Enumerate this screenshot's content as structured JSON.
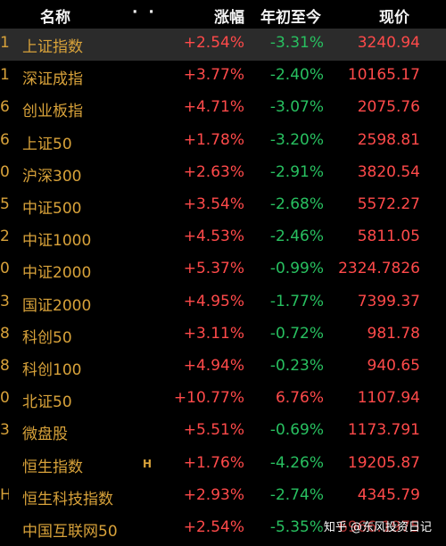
{
  "header": {
    "name_label": "名称",
    "dots": "· ·",
    "change_label": "涨幅",
    "ytd_label": "年初至今",
    "price_label": "现价"
  },
  "rows": [
    {
      "edge": "1",
      "name": "上证指数",
      "hk": "",
      "change": "+2.54%",
      "ytd": "-3.31%",
      "ytd_dir": "down",
      "price": "3240.94"
    },
    {
      "edge": "1",
      "name": "深证成指",
      "hk": "",
      "change": "+3.77%",
      "ytd": "-2.40%",
      "ytd_dir": "down",
      "price": "10165.17"
    },
    {
      "edge": "6",
      "name": "创业板指",
      "hk": "",
      "change": "+4.71%",
      "ytd": "-3.07%",
      "ytd_dir": "down",
      "price": "2075.76"
    },
    {
      "edge": "6",
      "name": "上证50",
      "hk": "",
      "change": "+1.78%",
      "ytd": "-3.20%",
      "ytd_dir": "down",
      "price": "2598.81"
    },
    {
      "edge": "0",
      "name": "沪深300",
      "hk": "",
      "change": "+2.63%",
      "ytd": "-2.91%",
      "ytd_dir": "down",
      "price": "3820.54"
    },
    {
      "edge": "5",
      "name": "中证500",
      "hk": "",
      "change": "+3.54%",
      "ytd": "-2.68%",
      "ytd_dir": "down",
      "price": "5572.27"
    },
    {
      "edge": "2",
      "name": "中证1000",
      "hk": "",
      "change": "+4.53%",
      "ytd": "-2.46%",
      "ytd_dir": "down",
      "price": "5811.05"
    },
    {
      "edge": "0",
      "name": "中证2000",
      "hk": "",
      "change": "+5.37%",
      "ytd": "-0.99%",
      "ytd_dir": "down",
      "price": "2324.7826"
    },
    {
      "edge": "3",
      "name": "国证2000",
      "hk": "",
      "change": "+4.95%",
      "ytd": "-1.77%",
      "ytd_dir": "down",
      "price": "7399.37"
    },
    {
      "edge": "8",
      "name": "科创50",
      "hk": "",
      "change": "+3.11%",
      "ytd": "-0.72%",
      "ytd_dir": "down",
      "price": "981.78"
    },
    {
      "edge": "8",
      "name": "科创100",
      "hk": "",
      "change": "+4.94%",
      "ytd": "-0.23%",
      "ytd_dir": "down",
      "price": "940.65"
    },
    {
      "edge": "0",
      "name": "北证50",
      "hk": "",
      "change": "+10.77%",
      "ytd": "6.76%",
      "ytd_dir": "up",
      "price": "1107.94"
    },
    {
      "edge": "3",
      "name": "微盘股",
      "hk": "",
      "change": "+5.51%",
      "ytd": "-0.69%",
      "ytd_dir": "down",
      "price": "1173.791"
    },
    {
      "edge": "",
      "name": "恒生指数",
      "hk": "H",
      "change": "+1.76%",
      "ytd": "-4.26%",
      "ytd_dir": "down",
      "price": "19205.87"
    },
    {
      "edge": "H",
      "name": "恒生科技指数",
      "hk": "",
      "change": "+2.93%",
      "ytd": "-2.74%",
      "ytd_dir": "down",
      "price": "4345.79"
    },
    {
      "edge": "",
      "name": "中国互联网50",
      "hk": "",
      "change": "+2.54%",
      "ytd": "-5.35%",
      "ytd_dir": "down",
      "price": "6966.1975"
    }
  ],
  "watermark": "知乎 @东风投资日记",
  "colors": {
    "up": "#ff4a4a",
    "down": "#28c060",
    "name": "#d8a23a",
    "selected_row": "#2b2b2b"
  }
}
